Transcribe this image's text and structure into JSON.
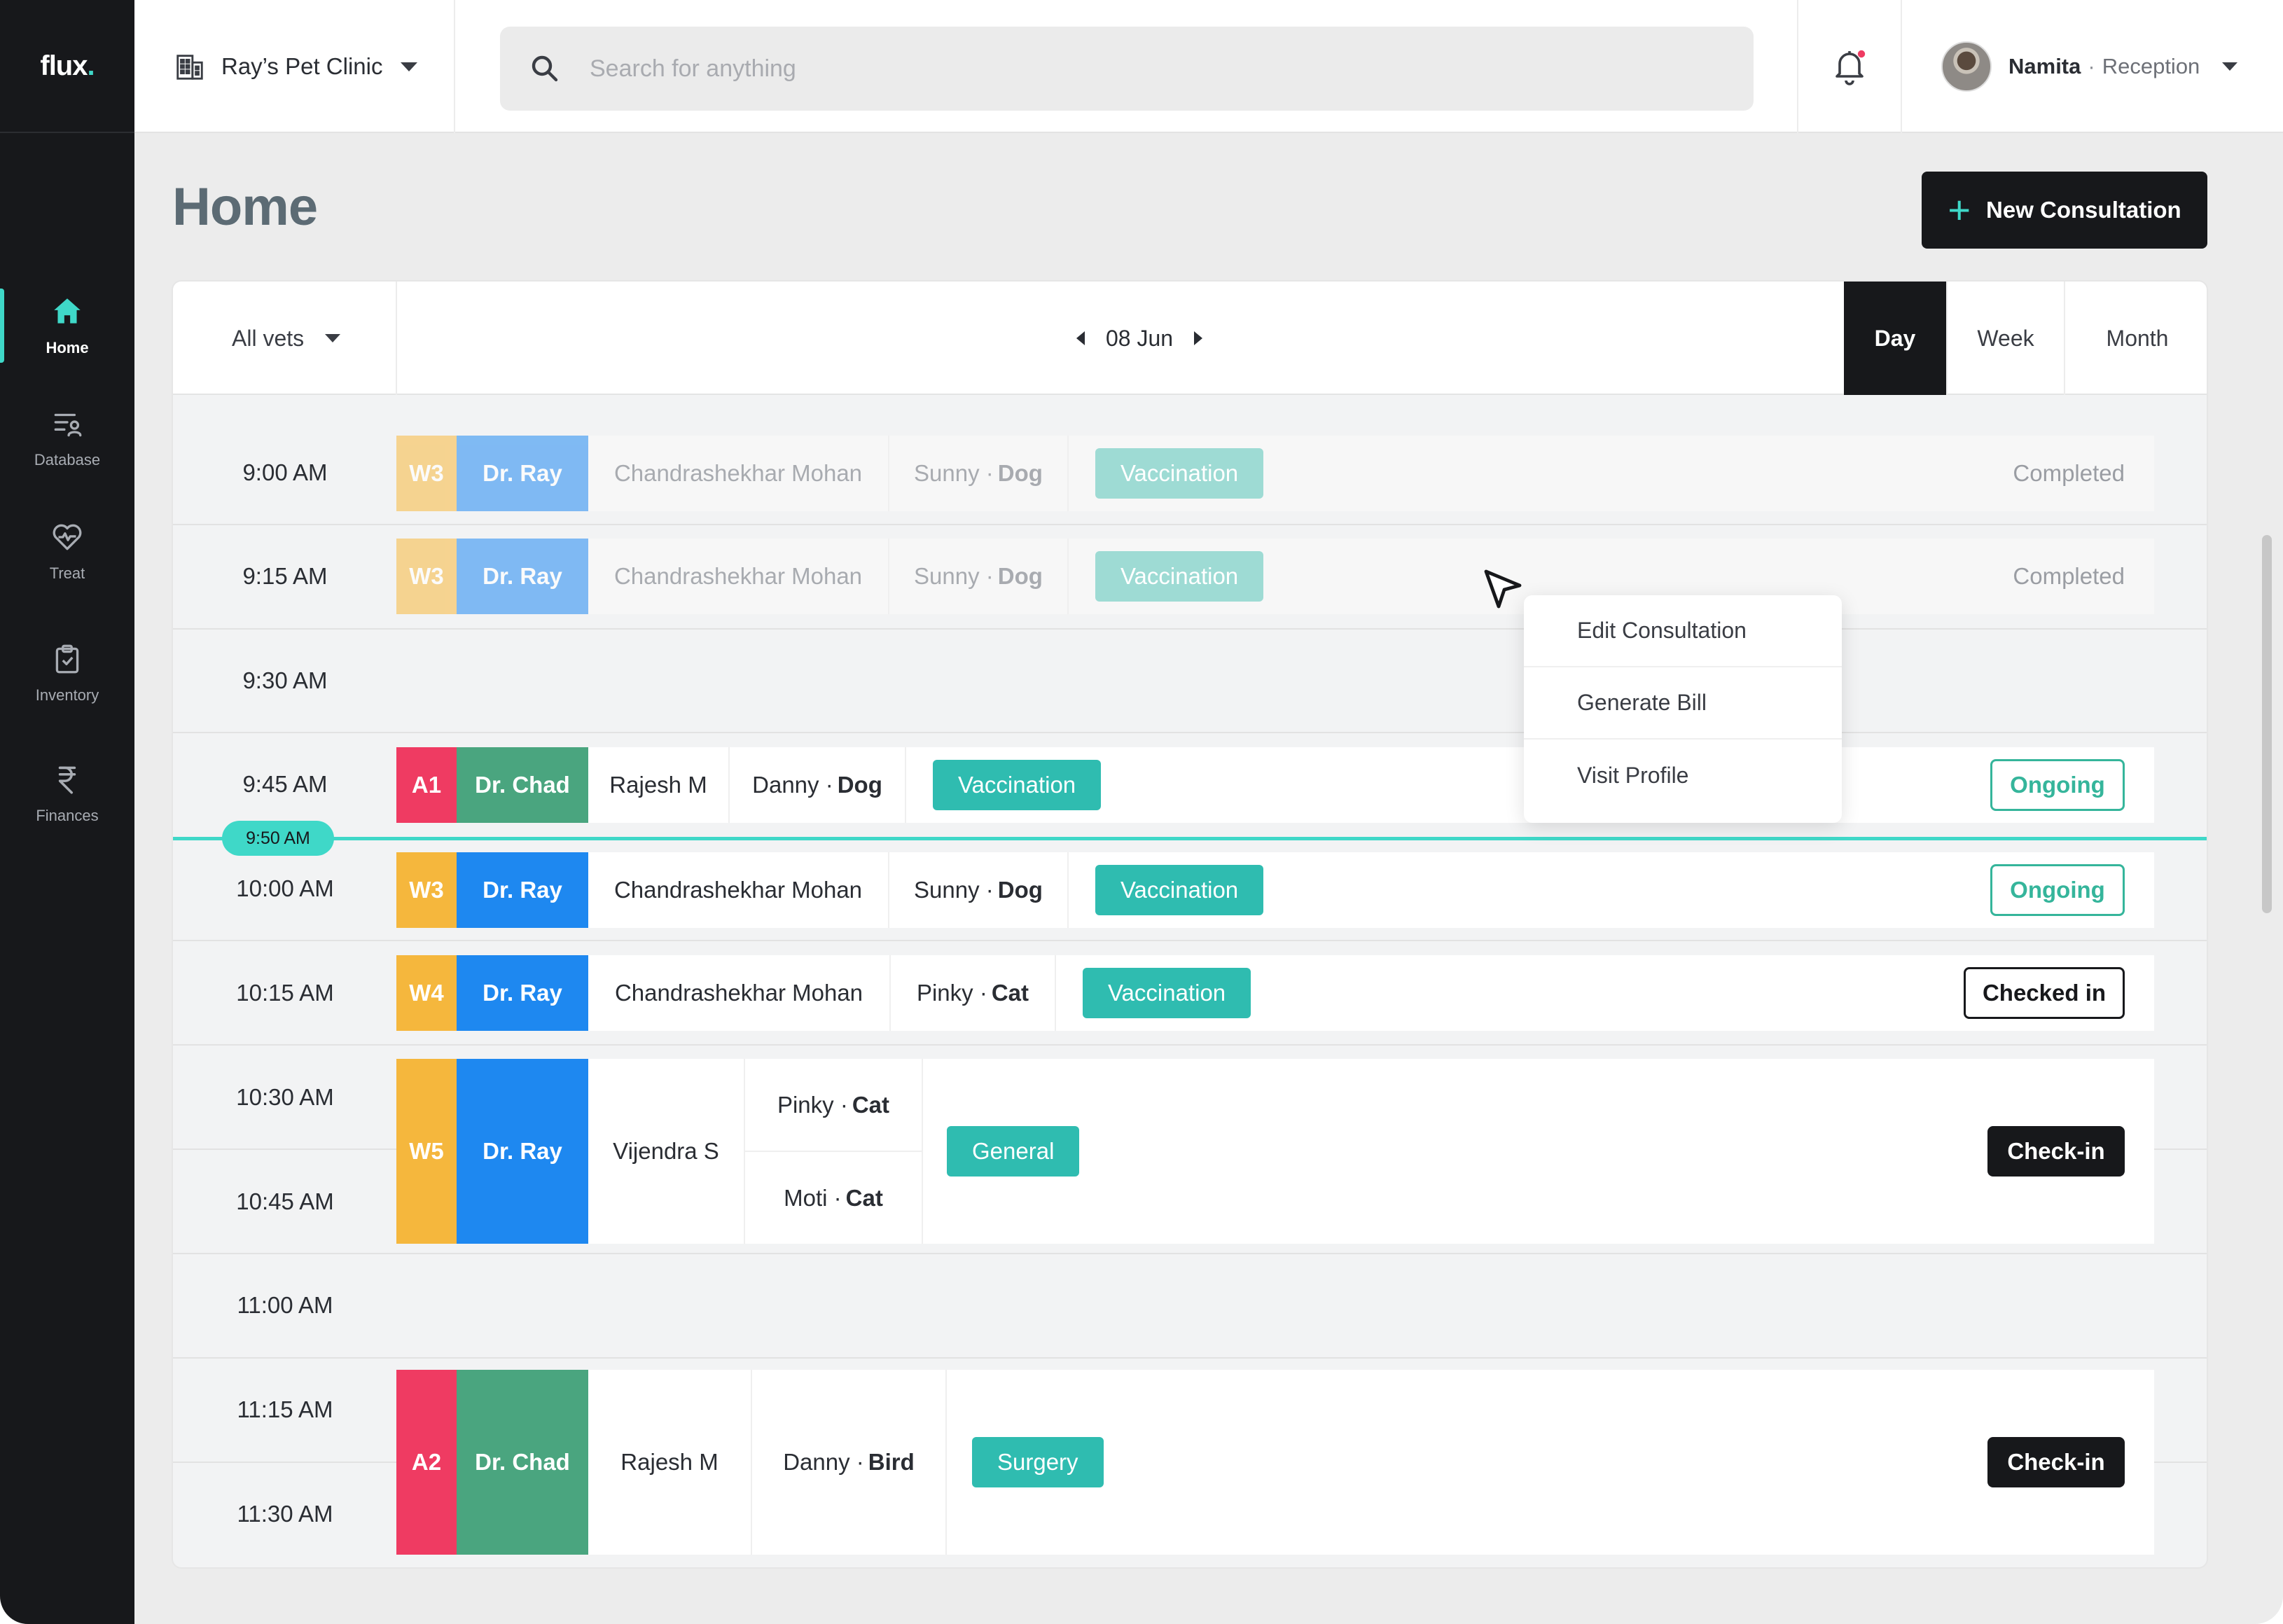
{
  "app": {
    "logo": "flux",
    "logo_dot": "."
  },
  "sidebar": {
    "items": [
      {
        "label": "Home",
        "icon": "home-icon",
        "active": true
      },
      {
        "label": "Database",
        "icon": "database-icon"
      },
      {
        "label": "Treat",
        "icon": "heart-pulse-icon"
      },
      {
        "label": "Inventory",
        "icon": "clipboard-check-icon"
      },
      {
        "label": "Finances",
        "icon": "rupee-icon"
      }
    ]
  },
  "topbar": {
    "clinic": "Ray’s Pet Clinic",
    "search_placeholder": "Search for anything",
    "user_name": "Namita",
    "user_separator": "·",
    "user_role": "Reception"
  },
  "header": {
    "title": "Home",
    "new_consultation": "New Consultation",
    "plus": "+"
  },
  "calendar": {
    "vet_filter": "All vets",
    "date": "08 Jun",
    "views": [
      "Day",
      "Week",
      "Month"
    ],
    "active_view": "Day",
    "now_label": "9:50 AM",
    "times": [
      "9:00 AM",
      "9:15 AM",
      "9:30 AM",
      "9:45 AM",
      "10:00 AM",
      "10:15 AM",
      "10:30 AM",
      "10:45 AM",
      "11:00 AM",
      "11:15 AM",
      "11:30 AM"
    ],
    "appointments": [
      {
        "ward": "W3",
        "doctor": "Dr. Ray",
        "owner": "Chandrashekhar Mohan",
        "pets": [
          {
            "name": "Sunny",
            "species": "Dog"
          }
        ],
        "type": "Vaccination",
        "status": "Completed",
        "faded": true
      },
      {
        "ward": "W3",
        "doctor": "Dr. Ray",
        "owner": "Chandrashekhar Mohan",
        "pets": [
          {
            "name": "Sunny",
            "species": "Dog"
          }
        ],
        "type": "Vaccination",
        "status": "Completed",
        "faded": true
      },
      {
        "ward": "A1",
        "doctor": "Dr. Chad",
        "owner": "Rajesh M",
        "pets": [
          {
            "name": "Danny",
            "species": "Dog"
          }
        ],
        "type": "Vaccination",
        "status": "Ongoing"
      },
      {
        "ward": "W3",
        "doctor": "Dr. Ray",
        "owner": "Chandrashekhar Mohan",
        "pets": [
          {
            "name": "Sunny",
            "species": "Dog"
          }
        ],
        "type": "Vaccination",
        "status": "Ongoing"
      },
      {
        "ward": "W4",
        "doctor": "Dr. Ray",
        "owner": "Chandrashekhar Mohan",
        "pets": [
          {
            "name": "Pinky",
            "species": "Cat"
          }
        ],
        "type": "Vaccination",
        "status": "Checked in"
      },
      {
        "ward": "W5",
        "doctor": "Dr. Ray",
        "owner": "Vijendra S",
        "pets": [
          {
            "name": "Pinky",
            "species": "Cat"
          },
          {
            "name": "Moti",
            "species": "Cat"
          }
        ],
        "type": "General",
        "status": "Check-in"
      },
      {
        "ward": "A2",
        "doctor": "Dr. Chad",
        "owner": "Rajesh M",
        "pets": [
          {
            "name": "Danny",
            "species": "Bird"
          }
        ],
        "type": "Surgery",
        "status": "Check-in"
      }
    ],
    "pet_separator": "·"
  },
  "context_menu": {
    "items": [
      "Edit Consultation",
      "Generate Bill",
      "Visit Profile"
    ]
  },
  "colors": {
    "accent": "#3fd8c8",
    "dark": "#17181b",
    "ward_yellow": "#f5b73d",
    "ward_red": "#ef3b62",
    "dr_ray_blue": "#1e88f0",
    "dr_chad_green": "#4aa57f",
    "tag_teal": "#2fbcb0"
  }
}
